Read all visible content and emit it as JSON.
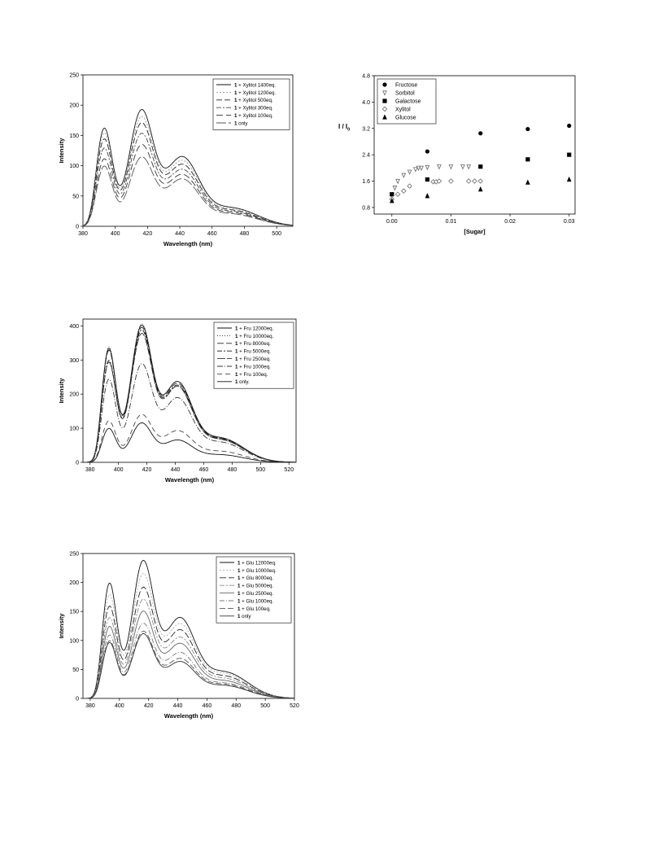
{
  "chart_data": [
    {
      "type": "line",
      "xlabel": "Wavelength (nm)",
      "ylabel": "Intensity",
      "xlim": [
        380,
        510
      ],
      "ylim": [
        0,
        250
      ],
      "xticks": [
        380,
        400,
        420,
        440,
        460,
        480,
        500
      ],
      "yticks": [
        0,
        50,
        100,
        150,
        200,
        250
      ],
      "grid": false,
      "legend_position": "top-right",
      "series": [
        {
          "prefix": "1",
          "name": " + Xylitol 1400eq.",
          "color": "#111111",
          "dash": "",
          "peaks": [
            163,
            186,
            110,
            30
          ]
        },
        {
          "prefix": "1",
          "name": " + Xylitol 1200eq.",
          "color": "#999999",
          "dash": "2,2",
          "peaks": [
            155,
            175,
            104,
            28
          ]
        },
        {
          "prefix": "1",
          "name": " + Xylitol 500eq.",
          "color": "#222222",
          "dash": "7,3",
          "peaks": [
            145,
            165,
            98,
            26
          ]
        },
        {
          "prefix": "1",
          "name": " + Xylitol 300eq.",
          "color": "#444444",
          "dash": "6,2,2,2",
          "peaks": [
            130,
            148,
            90,
            24
          ]
        },
        {
          "prefix": "1",
          "name": " + Xylitol 100eq.",
          "color": "#333333",
          "dash": "8,4",
          "peaks": [
            112,
            130,
            82,
            22
          ]
        },
        {
          "prefix": "1",
          "name": " only",
          "color": "#555555",
          "dash": "12,3",
          "peaks": [
            100,
            110,
            75,
            20
          ]
        }
      ]
    },
    {
      "type": "scatter",
      "xlabel": "[Sugar]",
      "ylabel": "I / I",
      "ylabel_sub": "0",
      "xlim": [
        -0.003,
        0.031
      ],
      "ylim": [
        0.6,
        4.8
      ],
      "xticks": [
        0.0,
        0.01,
        0.02,
        0.03
      ],
      "xtick_labels": [
        "0.00",
        "0.01",
        "0.02",
        "0.03"
      ],
      "yticks": [
        0.8,
        1.6,
        2.4,
        3.2,
        4.0,
        4.8
      ],
      "ytick_labels": [
        "0.8",
        "1.6",
        "2.4",
        "3.2",
        "4.0",
        "4.8"
      ],
      "grid": false,
      "legend_position": "top-left",
      "series": [
        {
          "name": "Fructose",
          "marker": "circle-filled",
          "x": [
            0.006,
            0.015,
            0.023,
            0.03
          ],
          "y": [
            2.5,
            3.05,
            3.18,
            3.28
          ]
        },
        {
          "name": "Sorbitol",
          "marker": "triangle-down-open",
          "x": [
            0.0,
            0.0005,
            0.001,
            0.002,
            0.003,
            0.004,
            0.0045,
            0.005,
            0.006,
            0.008,
            0.01,
            0.012,
            0.013
          ],
          "y": [
            1.2,
            1.4,
            1.6,
            1.78,
            1.88,
            1.96,
            2.0,
            2.0,
            2.02,
            2.04,
            2.04,
            2.04,
            2.04
          ]
        },
        {
          "name": "Galactose",
          "marker": "square-filled",
          "x": [
            0.0,
            0.006,
            0.015,
            0.023,
            0.03
          ],
          "y": [
            1.2,
            1.65,
            2.04,
            2.26,
            2.4
          ]
        },
        {
          "name": "Xylitol",
          "marker": "diamond-open",
          "x": [
            0.0,
            0.001,
            0.002,
            0.003,
            0.007,
            0.0075,
            0.008,
            0.01,
            0.013,
            0.014,
            0.015
          ],
          "y": [
            1.05,
            1.2,
            1.3,
            1.45,
            1.58,
            1.58,
            1.6,
            1.6,
            1.6,
            1.6,
            1.6
          ]
        },
        {
          "name": "Glucose",
          "marker": "triangle-up-filled",
          "x": [
            0.0,
            0.006,
            0.015,
            0.023,
            0.03
          ],
          "y": [
            1.0,
            1.15,
            1.35,
            1.56,
            1.65
          ]
        }
      ]
    },
    {
      "type": "line",
      "xlabel": "Wavelength (nm)",
      "ylabel": "Intensity",
      "xlim": [
        375,
        525
      ],
      "ylim": [
        0,
        420
      ],
      "xticks": [
        380,
        400,
        420,
        440,
        460,
        480,
        500,
        520
      ],
      "yticks": [
        0,
        100,
        200,
        300,
        400
      ],
      "grid": false,
      "legend_position": "top-right",
      "series": [
        {
          "prefix": "1",
          "name": " + Fru 12000eq.",
          "color": "#111111",
          "dash": "",
          "peaks": [
            335,
            388,
            225,
            70
          ]
        },
        {
          "prefix": "1",
          "name": " + Fru 10000eq.",
          "color": "#222222",
          "dash": "1,2",
          "peaks": [
            340,
            392,
            225,
            70
          ]
        },
        {
          "prefix": "1",
          "name": " + Fru 8000eq.",
          "color": "#222222",
          "dash": "8,3",
          "peaks": [
            330,
            382,
            220,
            68
          ]
        },
        {
          "prefix": "1",
          "name": " + Fru 5000eq.",
          "color": "#111111",
          "dash": "6,2,2,2",
          "peaks": [
            300,
            375,
            215,
            66
          ]
        },
        {
          "prefix": "1",
          "name": " + Fru 2500eq.",
          "color": "#333333",
          "dash": "10,2",
          "peaks": [
            295,
            365,
            212,
            65
          ]
        },
        {
          "prefix": "1",
          "name": " + Fru 1000eq.",
          "color": "#333333",
          "dash": "7,2,1,2",
          "peaks": [
            245,
            278,
            180,
            58
          ]
        },
        {
          "prefix": "1",
          "name": " + Fru 100eq.",
          "color": "#444444",
          "dash": "6,4",
          "peaks": [
            122,
            135,
            88,
            32
          ]
        },
        {
          "prefix": "1",
          "name": " only.",
          "color": "#111111",
          "dash": "",
          "peaks": [
            100,
            112,
            62,
            22
          ]
        }
      ]
    },
    {
      "type": "line",
      "xlabel": "Wavelength (nm)",
      "ylabel": "Intensity",
      "xlim": [
        375,
        520
      ],
      "ylim": [
        0,
        250
      ],
      "xticks": [
        380,
        400,
        420,
        440,
        460,
        480,
        500,
        520
      ],
      "yticks": [
        0,
        50,
        100,
        150,
        200,
        250
      ],
      "grid": false,
      "legend_position": "top-right",
      "series": [
        {
          "prefix": "1",
          "name": " + Glu 12000eq.",
          "color": "#111111",
          "dash": "",
          "peaks": [
            200,
            230,
            132,
            45
          ]
        },
        {
          "prefix": "1",
          "name": " + Glu 10000eq.",
          "color": "#aaaaaa",
          "dash": "2,2",
          "peaks": [
            180,
            208,
            122,
            42
          ]
        },
        {
          "prefix": "1",
          "name": " + Glu 8000eq.",
          "color": "#222222",
          "dash": "8,3",
          "peaks": [
            160,
            185,
            112,
            38
          ]
        },
        {
          "prefix": "1",
          "name": " + Glu 5000eq.",
          "color": "#888888",
          "dash": "6,2,2,2",
          "peaks": [
            140,
            165,
            100,
            34
          ]
        },
        {
          "prefix": "1",
          "name": " + Glu 2500eq.",
          "color": "#666666",
          "dash": "",
          "peaks": [
            125,
            145,
            90,
            30
          ]
        },
        {
          "prefix": "1",
          "name": " + Glu 1000eq.",
          "color": "#777777",
          "dash": "6,2,1,2",
          "peaks": [
            110,
            125,
            75,
            26
          ]
        },
        {
          "prefix": "1",
          "name": " + Glu 100eq.",
          "color": "#555555",
          "dash": "7,3",
          "peaks": [
            100,
            112,
            65,
            24
          ]
        },
        {
          "prefix": "1",
          "name": " only",
          "color": "#333333",
          "dash": "",
          "peaks": [
            97,
            108,
            60,
            22
          ]
        }
      ]
    }
  ]
}
